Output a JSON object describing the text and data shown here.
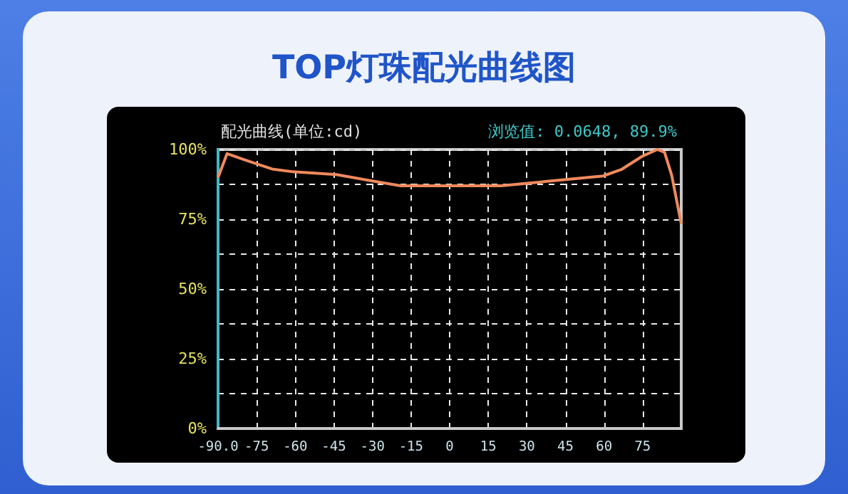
{
  "chart_data": {
    "type": "line",
    "title": "TOP灯珠配光曲线图",
    "subtitle": "配光曲线(单位:cd)",
    "annotations": [
      "浏览值: 0.0648, 89.9%"
    ],
    "x": [
      -90,
      -86.5,
      -78.8,
      -69,
      -60.8,
      -44,
      -30,
      -19,
      0,
      20,
      37,
      59.6,
      66.7,
      74.5,
      80.7,
      83.5,
      86.3,
      90
    ],
    "series": [
      {
        "color": "#f08a5d",
        "values": [
          90,
          98.5,
          96,
          93,
          92,
          91,
          88.7,
          87,
          87,
          87,
          88.5,
          90.5,
          92.8,
          97.4,
          100,
          99,
          90.7,
          73.4
        ]
      }
    ],
    "xlim": [
      -90,
      90
    ],
    "xticks": [
      {
        "value": -90,
        "label": "-90.0"
      },
      -75,
      -60,
      -45,
      -30,
      -15,
      0,
      15,
      30,
      45,
      60,
      75
    ],
    "ylim": [
      0,
      100
    ],
    "yticks": [
      {
        "value": 0,
        "label": "0%"
      },
      {
        "value": 12.5,
        "label": null
      },
      {
        "value": 25,
        "label": "25%"
      },
      {
        "value": 37.5,
        "label": null
      },
      {
        "value": 50,
        "label": "50%"
      },
      {
        "value": 62.5,
        "label": null
      },
      {
        "value": 75,
        "label": "75%"
      },
      {
        "value": 87.5,
        "label": null
      },
      {
        "value": 100,
        "label": "100%"
      }
    ],
    "grid": true,
    "marker": "none",
    "line_style": "solid"
  }
}
